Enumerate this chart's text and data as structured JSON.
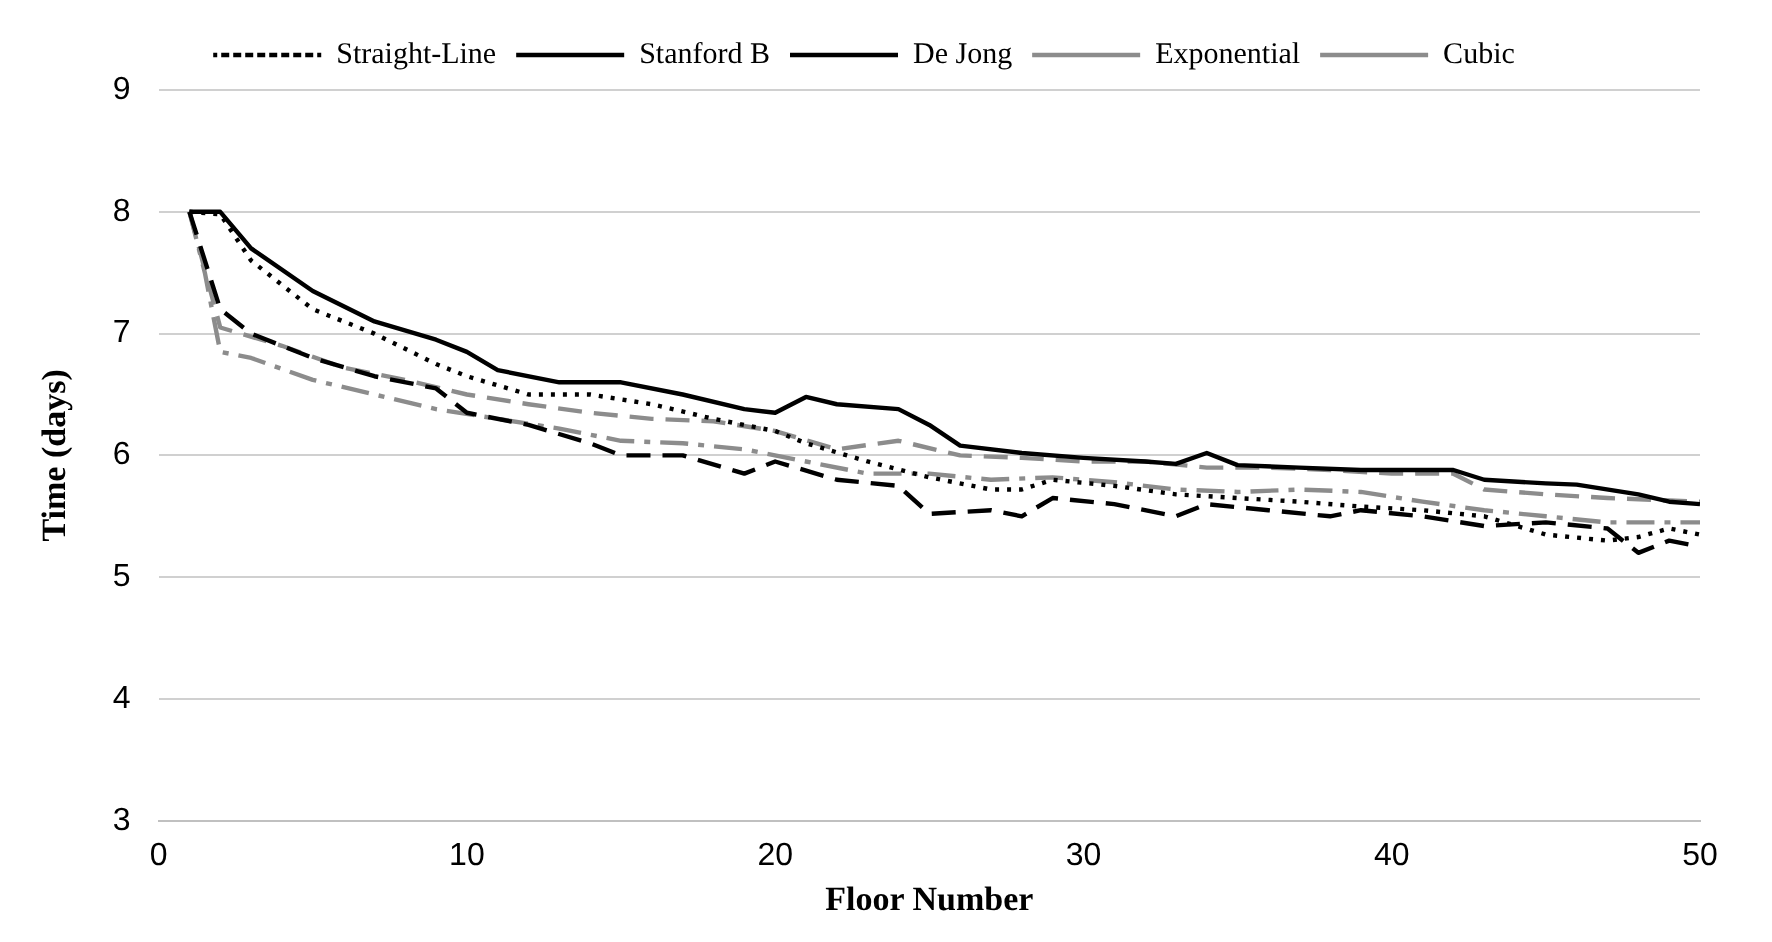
{
  "chart_data": {
    "type": "line",
    "xlabel": "Floor Number",
    "ylabel": "Time (days)",
    "xlim": [
      0,
      50
    ],
    "xticks": [
      0,
      10,
      20,
      30,
      40,
      50
    ],
    "ylim": [
      3,
      9
    ],
    "yticks": [
      3,
      4,
      5,
      6,
      7,
      8,
      9
    ],
    "grid": "y",
    "legend": "top",
    "marker": "none",
    "series": [
      {
        "name": "Straight-Line",
        "color": "#000000",
        "line_style": "dotted",
        "x": [
          1,
          2,
          3,
          5,
          7,
          9,
          10,
          12,
          14,
          16,
          18,
          20,
          21,
          23,
          25,
          27,
          28,
          29,
          31,
          33,
          35,
          37,
          39,
          41,
          43,
          45,
          47,
          48,
          49,
          50
        ],
        "values": [
          8,
          7.98,
          7.6,
          7.2,
          7.0,
          6.75,
          6.65,
          6.5,
          6.5,
          6.42,
          6.3,
          6.2,
          6.1,
          5.95,
          5.82,
          5.72,
          5.72,
          5.8,
          5.75,
          5.68,
          5.65,
          5.62,
          5.58,
          5.55,
          5.5,
          5.35,
          5.3,
          5.33,
          5.4,
          5.35
        ]
      },
      {
        "name": "Stanford B",
        "color": "#000000",
        "line_style": "dashed",
        "x": [
          1,
          2,
          3,
          5,
          7,
          9,
          10,
          12,
          14,
          15,
          17,
          19,
          20,
          22,
          24,
          25,
          27,
          28,
          29,
          31,
          33,
          34,
          36,
          38,
          39,
          41,
          43,
          45,
          47,
          48,
          49,
          50
        ],
        "values": [
          8,
          7.2,
          7.0,
          6.8,
          6.65,
          6.55,
          6.35,
          6.25,
          6.1,
          6.0,
          6.0,
          5.85,
          5.95,
          5.8,
          5.75,
          5.52,
          5.55,
          5.5,
          5.65,
          5.6,
          5.5,
          5.6,
          5.55,
          5.5,
          5.55,
          5.5,
          5.42,
          5.45,
          5.4,
          5.2,
          5.3,
          5.25
        ]
      },
      {
        "name": "De Jong",
        "color": "#000000",
        "line_style": "solid",
        "x": [
          1,
          2,
          3,
          5,
          7,
          9,
          10,
          11,
          13,
          15,
          17,
          19,
          20,
          21,
          22,
          24,
          25,
          26,
          28,
          30,
          32,
          33,
          34,
          35,
          37,
          39,
          41,
          42,
          43,
          45,
          46,
          48,
          49,
          50
        ],
        "values": [
          8,
          8.0,
          7.7,
          7.35,
          7.1,
          6.95,
          6.85,
          6.7,
          6.6,
          6.6,
          6.5,
          6.38,
          6.35,
          6.48,
          6.42,
          6.38,
          6.25,
          6.08,
          6.02,
          5.98,
          5.95,
          5.93,
          6.02,
          5.92,
          5.9,
          5.88,
          5.88,
          5.88,
          5.8,
          5.77,
          5.76,
          5.68,
          5.62,
          5.6
        ]
      },
      {
        "name": "Exponential",
        "color": "#8c8c8c",
        "line_style": "dashed",
        "x": [
          1,
          2,
          4,
          6,
          8,
          10,
          12,
          14,
          16,
          18,
          20,
          22,
          24,
          26,
          28,
          30,
          32,
          34,
          36,
          38,
          40,
          42,
          43,
          45,
          47,
          50
        ],
        "values": [
          8,
          7.05,
          6.9,
          6.72,
          6.62,
          6.5,
          6.42,
          6.35,
          6.3,
          6.28,
          6.2,
          6.05,
          6.12,
          6.0,
          5.98,
          5.95,
          5.95,
          5.9,
          5.9,
          5.88,
          5.85,
          5.85,
          5.72,
          5.68,
          5.65,
          5.62
        ]
      },
      {
        "name": "Cubic",
        "color": "#8c8c8c",
        "line_style": "dashdot",
        "x": [
          1,
          1.5,
          2,
          3,
          5,
          7,
          9,
          11,
          13,
          15,
          17,
          19,
          21,
          23,
          25,
          27,
          29,
          31,
          33,
          35,
          37,
          39,
          41,
          43,
          45,
          47,
          50
        ],
        "values": [
          8,
          7.5,
          6.85,
          6.8,
          6.62,
          6.5,
          6.38,
          6.3,
          6.22,
          6.12,
          6.1,
          6.05,
          5.95,
          5.85,
          5.85,
          5.8,
          5.82,
          5.78,
          5.72,
          5.7,
          5.72,
          5.7,
          5.62,
          5.55,
          5.5,
          5.45,
          5.45
        ]
      }
    ]
  }
}
